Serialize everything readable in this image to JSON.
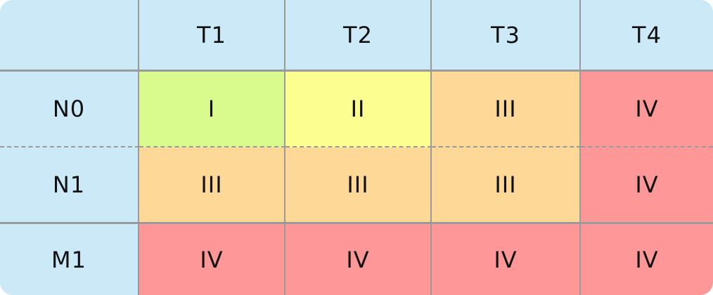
{
  "table": {
    "column_headers": [
      "T1",
      "T2",
      "T3",
      "T4"
    ],
    "row_headers": [
      "N0",
      "N1",
      "M1"
    ],
    "rows": [
      [
        "I",
        "II",
        "III",
        "IV"
      ],
      [
        "III",
        "III",
        "III",
        "IV"
      ],
      [
        "IV",
        "IV",
        "IV",
        "IV"
      ]
    ]
  },
  "colors": {
    "header_bg": "#cce9f8",
    "stage_I": "#d9fb8e",
    "stage_II": "#fcfe90",
    "stage_III": "#fdd897",
    "stage_IV": "#fe9898",
    "grid_line": "#9a9a9a"
  }
}
